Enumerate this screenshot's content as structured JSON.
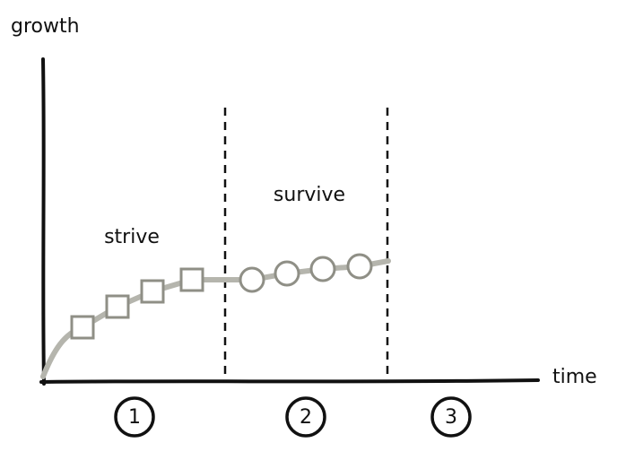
{
  "axes": {
    "y_label": "growth",
    "x_label": "time"
  },
  "phases": [
    {
      "label": "strive",
      "number": "1"
    },
    {
      "label": "survive",
      "number": "2"
    },
    {
      "label": "",
      "number": "3"
    }
  ]
}
